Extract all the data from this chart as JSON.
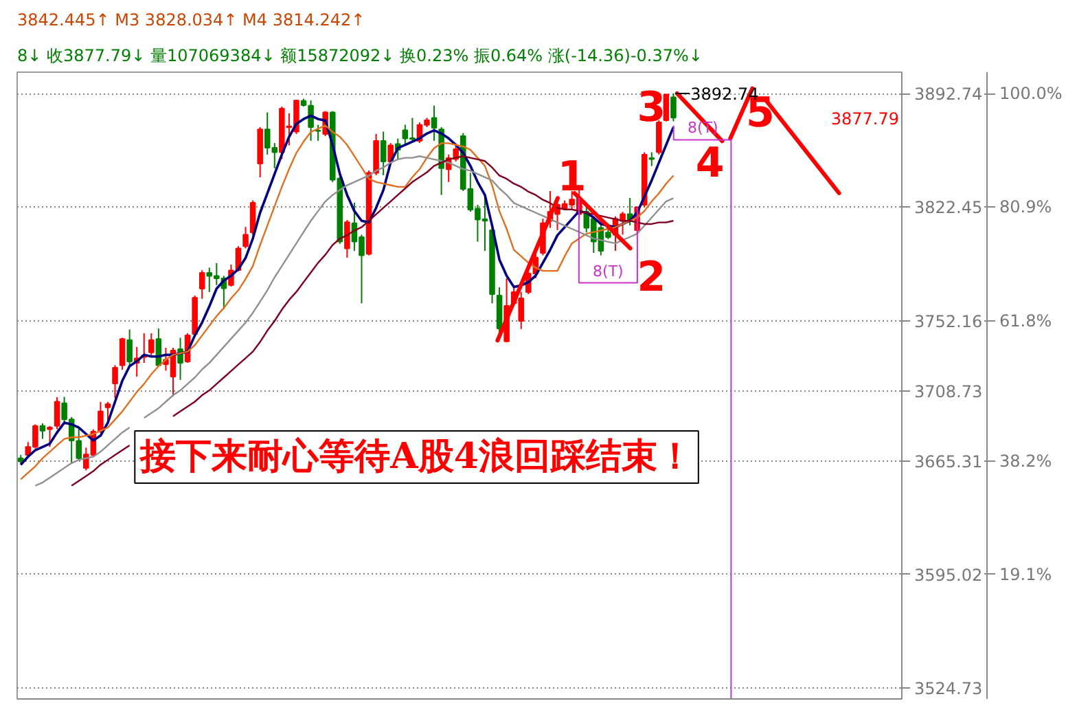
{
  "chart_data": {
    "type": "candlestick",
    "title": "8↓ 收3877.79↓ 量107069384↓ 额15872092↓ 换0.23% 振0.64% 涨(-14.36)-0.37%↓",
    "subtitle": "3842.445↑ M3 3828.034↑ M4 3814.242↑",
    "categories": [
      null,
      null,
      null,
      null,
      null,
      null,
      null,
      null,
      null,
      null,
      null,
      null,
      null,
      null,
      null,
      null,
      null,
      null,
      null,
      null,
      null,
      null,
      null,
      null,
      null,
      null,
      null,
      null,
      null,
      null,
      null,
      null,
      null,
      null,
      null,
      null,
      null,
      null,
      null,
      null,
      null,
      null,
      null,
      null,
      null,
      null,
      null,
      null,
      null,
      null,
      null,
      null,
      null,
      null,
      null,
      null,
      null,
      null,
      null,
      null,
      null,
      null,
      null,
      null,
      null,
      null,
      null,
      null,
      null,
      null,
      null,
      null,
      null,
      null,
      null,
      null,
      null,
      null,
      null,
      null,
      null,
      null,
      null,
      null,
      null,
      null,
      null,
      null,
      null,
      null,
      null,
      null,
      null,
      null,
      null,
      null,
      null,
      null,
      null,
      null,
      null,
      null,
      null,
      null,
      null,
      null,
      null,
      null,
      null,
      null,
      null,
      null,
      null,
      null,
      null,
      null,
      null,
      null,
      null,
      null,
      null,
      null
    ],
    "ylim": [
      3518,
      3906
    ],
    "yticks": [
      3892.74,
      3822.45,
      3752.16,
      3708.73,
      3665.31,
      3595.02,
      3524.73
    ],
    "y2lim": [
      -1.83,
      103.6
    ],
    "y2ticks": [
      {
        "value": 100,
        "label": "100.0%"
      },
      {
        "value": 80.9,
        "label": "80.9%"
      },
      {
        "value": 61.8,
        "label": "61.8%"
      },
      {
        "value": 38.2,
        "label": "38.2%"
      },
      {
        "value": 19.1,
        "label": "19.1%"
      }
    ],
    "tick_labels": "y",
    "grid": "y",
    "ohlc": [
      [
        3667,
        3669,
        3663,
        3665
      ],
      [
        3669,
        3677,
        3668,
        3674
      ],
      [
        3674,
        3688,
        3673,
        3687
      ],
      [
        3687,
        3688.6,
        3679,
        3684
      ],
      [
        3685,
        3687,
        3674,
        3686
      ],
      [
        3687,
        3704.8,
        3685,
        3702
      ],
      [
        3701,
        3705,
        3688,
        3691
      ],
      [
        3691,
        3692.5,
        3663.6,
        3678
      ],
      [
        3677.8,
        3686,
        3666.5,
        3667
      ],
      [
        3661,
        3673.6,
        3659.4,
        3669.3
      ],
      [
        3669,
        3684.9,
        3667.9,
        3683.5
      ],
      [
        3683.5,
        3701.9,
        3682.7,
        3696
      ],
      [
        3698.5,
        3701.9,
        3690.6,
        3700.5
      ],
      [
        3713.3,
        3724.6,
        3704.2,
        3723.1
      ],
      [
        3724.6,
        3741.6,
        3721.8,
        3740.8
      ],
      [
        3740.2,
        3746.7,
        3724.6,
        3726.9
      ],
      [
        3726,
        3735.9,
        3717.5,
        3728.8
      ],
      [
        3729.7,
        3744.4,
        3726,
        3730.7
      ],
      [
        3732.5,
        3744.4,
        3730.8,
        3740.2
      ],
      [
        3740.8,
        3747.3,
        3724,
        3724.6
      ],
      [
        3725.2,
        3735.4,
        3721.2,
        3728
      ],
      [
        3717.5,
        3735.4,
        3705.3,
        3733.7
      ],
      [
        3734.5,
        3741.6,
        3715.5,
        3726
      ],
      [
        3726.9,
        3744.4,
        3726,
        3743.1
      ],
      [
        3743.9,
        3767.7,
        3743,
        3766.3
      ],
      [
        3772,
        3783.3,
        3765.7,
        3781.8
      ],
      [
        3781.8,
        3785,
        3769.9,
        3779.9
      ],
      [
        3779.9,
        3787.8,
        3774.2,
        3778.4
      ],
      [
        3778.4,
        3779.9,
        3759.2,
        3772.2
      ],
      [
        3774.2,
        3786.9,
        3773.3,
        3783.3
      ],
      [
        3783.5,
        3798.3,
        3782.7,
        3796.9
      ],
      [
        3798.3,
        3810.2,
        3796.9,
        3805.4
      ],
      [
        3806.8,
        3826.6,
        3805,
        3825.2
      ],
      [
        3849.4,
        3872,
        3840.9,
        3870.6
      ],
      [
        3870.6,
        3881.1,
        3855,
        3859.2
      ],
      [
        3859.2,
        3862.1,
        3846.5,
        3856.4
      ],
      [
        3856.4,
        3884.7,
        3852.2,
        3883.4
      ],
      [
        3871.9,
        3880.5,
        3860.7,
        3872.5
      ],
      [
        3869.2,
        3889,
        3867.7,
        3888.5
      ],
      [
        3888.2,
        3889.6,
        3884.7,
        3885.6
      ],
      [
        3885.3,
        3888.5,
        3863.5,
        3872
      ],
      [
        3869.8,
        3873.4,
        3863.5,
        3869.6
      ],
      [
        3867.7,
        3881.9,
        3866.4,
        3881.1
      ],
      [
        3881.1,
        3881.9,
        3838,
        3839.4
      ],
      [
        3840.2,
        3842.2,
        3799.7,
        3801.1
      ],
      [
        3796.9,
        3814.5,
        3791.2,
        3813.1
      ],
      [
        3812.5,
        3825.2,
        3795.4,
        3801.1
      ],
      [
        3803.9,
        3805.4,
        3762.9,
        3792.6
      ],
      [
        3793.5,
        3845.1,
        3792.6,
        3843.7
      ],
      [
        3843.7,
        3867.7,
        3842.2,
        3863.5
      ],
      [
        3863.5,
        3869.2,
        3842.2,
        3850.7
      ],
      [
        3850.7,
        3862.1,
        3849.4,
        3860.7
      ],
      [
        3861.5,
        3864.9,
        3852.2,
        3857.9
      ],
      [
        3870,
        3873.4,
        3860.7,
        3864.9
      ],
      [
        3865.2,
        3877.7,
        3863.5,
        3864.6
      ],
      [
        3863.5,
        3874.9,
        3862.1,
        3873.4
      ],
      [
        3873.4,
        3877.7,
        3872,
        3876.2
      ],
      [
        3877.7,
        3885.3,
        3863.5,
        3871.5
      ],
      [
        3870.6,
        3872,
        3830,
        3846.5
      ],
      [
        3845.9,
        3855,
        3838,
        3852.8
      ],
      [
        3852.2,
        3860.7,
        3850.7,
        3858.4
      ],
      [
        3866.4,
        3868.3,
        3832.4,
        3833.7
      ],
      [
        3833.7,
        3843.7,
        3819.6,
        3820.9
      ],
      [
        3821.5,
        3823.9,
        3801.1,
        3814.7
      ],
      [
        3815,
        3829.5,
        3795.4,
        3814
      ],
      [
        3808.2,
        3809.6,
        3762.9,
        3768.6
      ],
      [
        3767.7,
        3772.8,
        3743,
        3747.3
      ],
      [
        3739.3,
        3778.4,
        3738.8,
        3761.4
      ],
      [
        3762.9,
        3774.2,
        3761.4,
        3769.9
      ],
      [
        3752,
        3770,
        3747,
        3766
      ],
      [
        3769.9,
        3782.7,
        3768.6,
        3781.3
      ],
      [
        3781.3,
        3794.1,
        3778.4,
        3791.2
      ],
      [
        3794.1,
        3815.3,
        3792.6,
        3812.5
      ],
      [
        3813.9,
        3832.4,
        3809.6,
        3819.6
      ],
      [
        3818.1,
        3826.6,
        3808.2,
        3823.9
      ],
      [
        3821.8,
        3826.6,
        3821,
        3824.4
      ],
      [
        3823.9,
        3832.4,
        3821,
        3827.2
      ],
      [
        3818.1,
        3835.2,
        3815.3,
        3828.1
      ],
      [
        3819.6,
        3822.4,
        3806.8,
        3809.6
      ],
      [
        3815.3,
        3816.7,
        3794.1,
        3801.1
      ],
      [
        3809.6,
        3812.4,
        3792.6,
        3795.4
      ],
      [
        3806.8,
        3812.4,
        3802.6,
        3803.9
      ],
      [
        3805.4,
        3816.7,
        3795.4,
        3815.3
      ],
      [
        3813.9,
        3819.6,
        3805.4,
        3818.1
      ],
      [
        3818.1,
        3828.1,
        3811.1,
        3813.9
      ],
      [
        3808.2,
        3822.4,
        3805.4,
        3822.4
      ],
      [
        3823.9,
        3856.4,
        3822.4,
        3854.9
      ],
      [
        3852.8,
        3856.4,
        3847.9,
        3852.2
      ],
      [
        3856.4,
        3876.2,
        3855,
        3874.9
      ],
      [
        3876.2,
        3892.4,
        3875.5,
        3892.15
      ],
      [
        3890.5,
        3892.74,
        3875.6,
        3877.79
      ],
      null,
      null,
      null,
      null,
      null,
      null,
      null,
      null,
      null,
      null,
      null,
      null,
      null,
      null,
      null,
      null,
      null,
      null,
      null,
      null,
      null,
      null,
      null,
      null,
      null,
      null,
      null,
      null,
      null,
      null,
      null
    ],
    "colors": [
      "#008000",
      "#ff0000",
      "#ff0000",
      "#008000",
      "#ff0000",
      "#ff0000",
      "#008000",
      "#008000",
      "#008000",
      "#ff0000",
      "#ff0000",
      "#ff0000",
      "#ff0000",
      "#ff0000",
      "#ff0000",
      "#008000",
      "#ff0000",
      "#ff0000",
      "#ff0000",
      "#008000",
      "#ff0000",
      "#ff0000",
      "#008000",
      "#ff0000",
      "#ff0000",
      "#ff0000",
      "#008000",
      "#008000",
      "#008000",
      "#ff0000",
      "#ff0000",
      "#ff0000",
      "#ff0000",
      "#ff0000",
      "#008000",
      "#008000",
      "#ff0000",
      "#ff0000",
      "#ff0000",
      "#008000",
      "#008000",
      "#008000",
      "#ff0000",
      "#008000",
      "#008000",
      "#ff0000",
      "#008000",
      "#008000",
      "#ff0000",
      "#ff0000",
      "#008000",
      "#ff0000",
      "#008000",
      "#008000",
      "#008000",
      "#ff0000",
      "#ff0000",
      "#008000",
      "#008000",
      "#ff0000",
      "#ff0000",
      "#008000",
      "#008000",
      "#008000",
      "#008000",
      "#008000",
      "#008000",
      "#ff0000",
      "#ff0000",
      "#ff0000",
      "#ff0000",
      "#ff0000",
      "#ff0000",
      "#ff0000",
      "#ff0000",
      "#ff0000",
      "#ff0000",
      "#ff0000",
      "#008000",
      "#008000",
      "#008000",
      "#008000",
      "#ff0000",
      "#ff0000",
      "#008000",
      "#ff0000",
      "#ff0000",
      "#008000",
      "#ff0000",
      "#ff0000",
      "#008000",
      null,
      null,
      null,
      null,
      null,
      null,
      null,
      null,
      null,
      null,
      null,
      null,
      null,
      null,
      null,
      null,
      null,
      null,
      null,
      null,
      null,
      null,
      null,
      null,
      null,
      null,
      null,
      null,
      null,
      null,
      null
    ],
    "series": [
      {
        "type": "line",
        "color": "#000080",
        "values": [
          3663,
          3668,
          3672,
          3674,
          3676,
          3683,
          3689,
          3688,
          3686,
          3682,
          3678,
          3681,
          3689,
          3702,
          3715,
          3724,
          3727,
          3731,
          3730,
          3730,
          3731,
          3731,
          3732,
          3733,
          3743,
          3751,
          3761,
          3772,
          3777,
          3780,
          3784,
          3791,
          3803,
          3819,
          3831,
          3843,
          3855,
          3866,
          3874,
          3877,
          3879,
          3877,
          3876,
          3861,
          3843,
          3830,
          3820,
          3814,
          3813,
          3822,
          3833,
          3850,
          3859,
          3861,
          3863,
          3865,
          3868,
          3870,
          3868,
          3865,
          3861,
          3856,
          3848,
          3838,
          3830,
          3811,
          3790,
          3780,
          3773,
          3774,
          3776,
          3780,
          3788,
          3796,
          3805,
          3810,
          3815,
          3820,
          3819,
          3816,
          3812,
          3811,
          3810,
          3812,
          3814,
          3819,
          3829,
          3839,
          3850,
          3861,
          3872,
          null,
          null,
          null,
          null,
          null,
          null,
          null,
          null,
          null,
          null,
          null,
          null,
          null,
          null,
          null,
          null,
          null,
          null,
          null,
          null,
          null,
          null,
          null,
          null,
          null,
          null,
          null,
          null,
          null,
          null,
          null
        ]
      },
      {
        "type": "line",
        "color": "#e07020",
        "values": [
          3654,
          3658,
          3662,
          3667,
          3671,
          3675,
          3679,
          3680,
          3680,
          3681,
          3682,
          3684,
          3686,
          3691,
          3696,
          3702,
          3708,
          3713,
          3719,
          3724,
          3728,
          3731,
          3732,
          3733,
          3737,
          3743,
          3749,
          3755,
          3760,
          3766,
          3771,
          3778,
          3786,
          3799,
          3811,
          3823,
          3835,
          3846,
          3856,
          3863,
          3869,
          3871,
          3873,
          3869,
          3866,
          3861,
          3854,
          3847,
          3840,
          3838,
          3837,
          3836,
          3835,
          3835,
          3841,
          3846,
          3853,
          3859,
          3862,
          3862,
          3861,
          3860,
          3858,
          3853,
          3848,
          3836,
          3820,
          3809,
          3796,
          3792,
          3788,
          3785,
          3783,
          3783,
          3783,
          3792,
          3800,
          3803,
          3806,
          3807,
          3808,
          3809,
          3810,
          3812,
          3814,
          3816,
          3820,
          3826,
          3831,
          3837,
          3842,
          null,
          null,
          null,
          null,
          null,
          null,
          null,
          null,
          null,
          null,
          null,
          null,
          null,
          null,
          null,
          null,
          null,
          null,
          null,
          null,
          null,
          null,
          null,
          null,
          null,
          null,
          null,
          null,
          null,
          null,
          null
        ]
      },
      {
        "type": "line",
        "color": "#909090",
        "values": [
          null,
          null,
          3650,
          3652,
          3655,
          3658,
          3661,
          3664,
          3666,
          3667,
          3668,
          3671,
          3675,
          3679,
          3683,
          3686,
          null,
          3692,
          3695,
          3698,
          3702,
          3706,
          3709,
          3713,
          3717,
          3722,
          3726,
          3731,
          3736,
          3741,
          3746,
          3751,
          3757,
          3764,
          3771,
          3779,
          3786,
          3793,
          3800,
          3807,
          3814,
          3820,
          3826,
          3830,
          3833,
          3836,
          3838,
          3840,
          3842,
          3845,
          3847,
          3850,
          3852,
          3853,
          3853,
          3854,
          3853,
          3852,
          3851,
          3850,
          3848,
          3846,
          3845,
          3843,
          3841,
          3839,
          3834,
          3830,
          3825,
          3823,
          3821,
          3819,
          3817,
          3815,
          3813,
          3811,
          3809,
          3807,
          3805,
          3803,
          3802,
          3801,
          3800,
          3802,
          3804,
          3806,
          3811,
          3816,
          3821,
          3826,
          3828,
          null,
          null,
          null,
          null,
          null,
          null,
          null,
          null,
          null,
          null,
          null,
          null,
          null,
          null,
          null,
          null,
          null,
          null,
          null,
          null,
          null,
          null,
          null,
          null,
          null,
          null,
          null,
          null,
          null,
          null,
          null
        ]
      },
      {
        "type": "line",
        "color": "#800020",
        "values": [
          null,
          null,
          null,
          null,
          null,
          null,
          null,
          3650,
          3653,
          3656,
          3659,
          3663,
          3666,
          3669,
          3672,
          3675,
          null,
          null,
          null,
          null,
          null,
          3693,
          3696,
          3699,
          3702,
          3706,
          3709,
          3713,
          3717,
          3721,
          3725,
          3729,
          3733,
          3739,
          3746,
          3752,
          3759,
          3765,
          3770,
          3776,
          3782,
          3788,
          3793,
          3799,
          3803,
          3805,
          3808,
          3810,
          3814,
          3818,
          3822,
          3826,
          3830,
          3834,
          3838,
          3841,
          3844,
          3848,
          3850,
          3852,
          3853,
          3854,
          3853,
          3852,
          3851,
          3847,
          3842,
          3840,
          3837,
          3835,
          3832,
          3830,
          3827,
          3825,
          3822,
          3821,
          3821,
          3820,
          3819,
          3818,
          3817,
          3816,
          3815,
          3814,
          3814,
          3813,
          3812,
          3812,
          3813,
          3813,
          3814,
          null,
          null,
          null,
          null,
          null,
          null,
          null,
          null,
          null,
          null,
          null,
          null,
          null,
          null,
          null,
          null,
          null,
          null,
          null,
          null,
          null,
          null,
          null,
          null,
          null,
          null,
          null,
          null,
          null,
          null,
          null
        ]
      }
    ],
    "annotations": [
      "接下来耐心等待A股4浪回踩结束！",
      "1",
      "2",
      "3",
      "4",
      "5",
      "8(T)",
      "8(T)",
      "3892.74",
      "3877.79"
    ]
  }
}
